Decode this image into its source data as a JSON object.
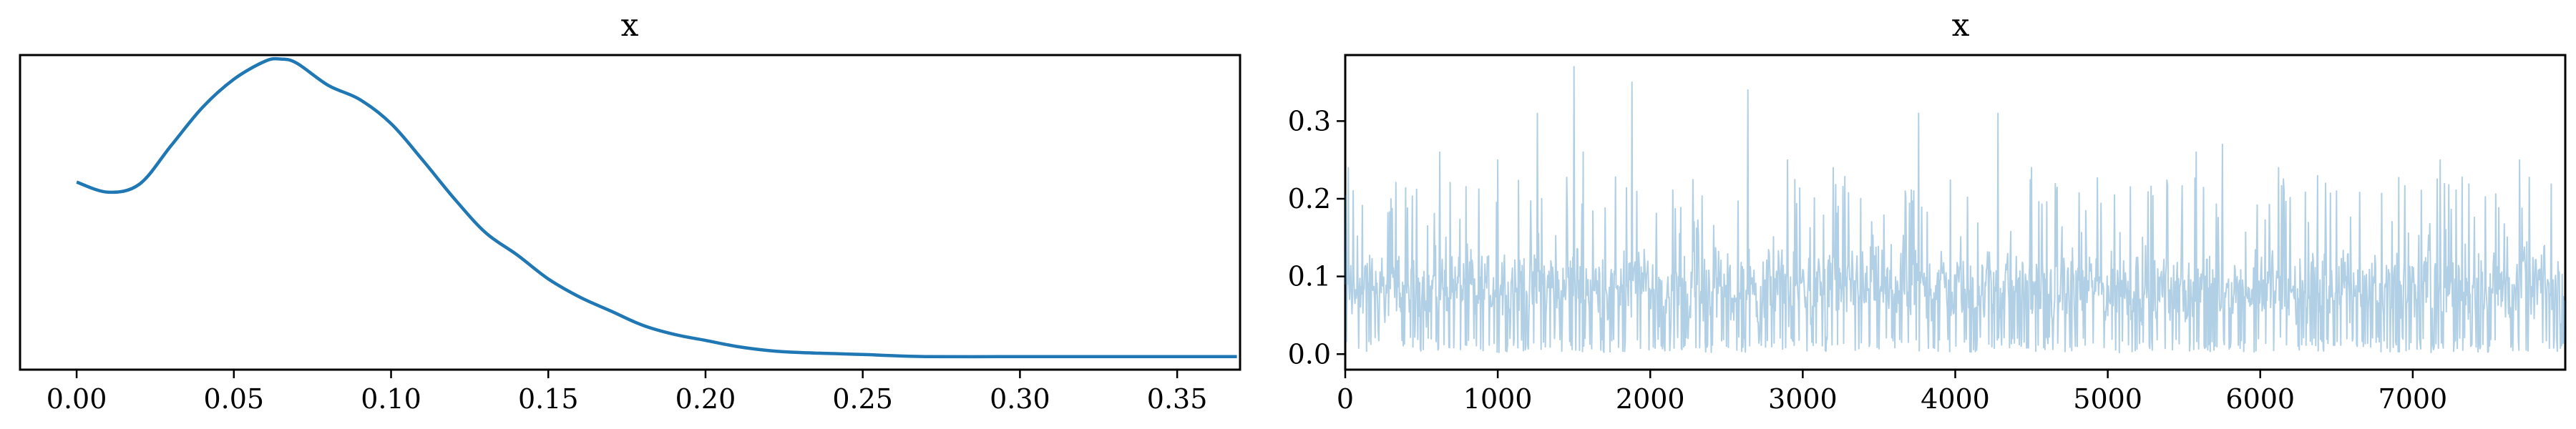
{
  "chart_data": [
    {
      "type": "line",
      "title": "x",
      "xlabel": "",
      "ylabel": "",
      "xlim": [
        -0.018,
        0.37
      ],
      "ylim": [
        -0.8,
        14.8
      ],
      "y_ticks_shown": false,
      "color": "#1f77b4",
      "x_ticks": [
        "0.00",
        "0.05",
        "0.10",
        "0.15",
        "0.20",
        "0.25",
        "0.30",
        "0.35"
      ],
      "x_tick_values": [
        0.0,
        0.05,
        0.1,
        0.15,
        0.2,
        0.25,
        0.3,
        0.35
      ],
      "x": [
        0.0,
        0.01,
        0.02,
        0.03,
        0.04,
        0.05,
        0.06,
        0.065,
        0.07,
        0.08,
        0.09,
        0.1,
        0.11,
        0.12,
        0.13,
        0.14,
        0.15,
        0.16,
        0.17,
        0.18,
        0.19,
        0.2,
        0.21,
        0.22,
        0.23,
        0.25,
        0.27,
        0.3,
        0.32,
        0.35,
        0.369
      ],
      "y": [
        8.5,
        8.0,
        8.4,
        10.3,
        12.2,
        13.6,
        14.5,
        14.6,
        14.4,
        13.3,
        12.6,
        11.4,
        9.6,
        7.7,
        6.0,
        4.9,
        3.7,
        2.8,
        2.1,
        1.4,
        0.95,
        0.65,
        0.35,
        0.15,
        0.05,
        -0.05,
        -0.15,
        -0.15,
        -0.15,
        -0.15,
        -0.15
      ]
    },
    {
      "type": "line",
      "title": "x",
      "xlabel": "",
      "ylabel": "",
      "xlim": [
        0,
        8000
      ],
      "ylim": [
        -0.02,
        0.385
      ],
      "color": "#1f77b4",
      "alpha": 0.35,
      "x_ticks": [
        "0",
        "1000",
        "2000",
        "3000",
        "4000",
        "5000",
        "6000",
        "7000"
      ],
      "x_tick_values": [
        0,
        1000,
        2000,
        3000,
        4000,
        5000,
        6000,
        7000
      ],
      "y_ticks": [
        "0.0",
        "0.1",
        "0.2",
        "0.3"
      ],
      "y_tick_values": [
        0.0,
        0.1,
        0.2,
        0.3
      ],
      "n_draws": 8000,
      "peaks": [
        {
          "x": 20,
          "y": 0.24
        },
        {
          "x": 300,
          "y": 0.2
        },
        {
          "x": 620,
          "y": 0.26
        },
        {
          "x": 1000,
          "y": 0.25
        },
        {
          "x": 1260,
          "y": 0.31
        },
        {
          "x": 1500,
          "y": 0.37
        },
        {
          "x": 1560,
          "y": 0.26
        },
        {
          "x": 1880,
          "y": 0.35
        },
        {
          "x": 2640,
          "y": 0.34
        },
        {
          "x": 2900,
          "y": 0.25
        },
        {
          "x": 3200,
          "y": 0.24
        },
        {
          "x": 3760,
          "y": 0.31
        },
        {
          "x": 4280,
          "y": 0.31
        },
        {
          "x": 4500,
          "y": 0.24
        },
        {
          "x": 5580,
          "y": 0.26
        },
        {
          "x": 5750,
          "y": 0.27
        },
        {
          "x": 6120,
          "y": 0.24
        },
        {
          "x": 6500,
          "y": 0.21
        },
        {
          "x": 7180,
          "y": 0.25
        },
        {
          "x": 7700,
          "y": 0.25
        }
      ]
    }
  ]
}
